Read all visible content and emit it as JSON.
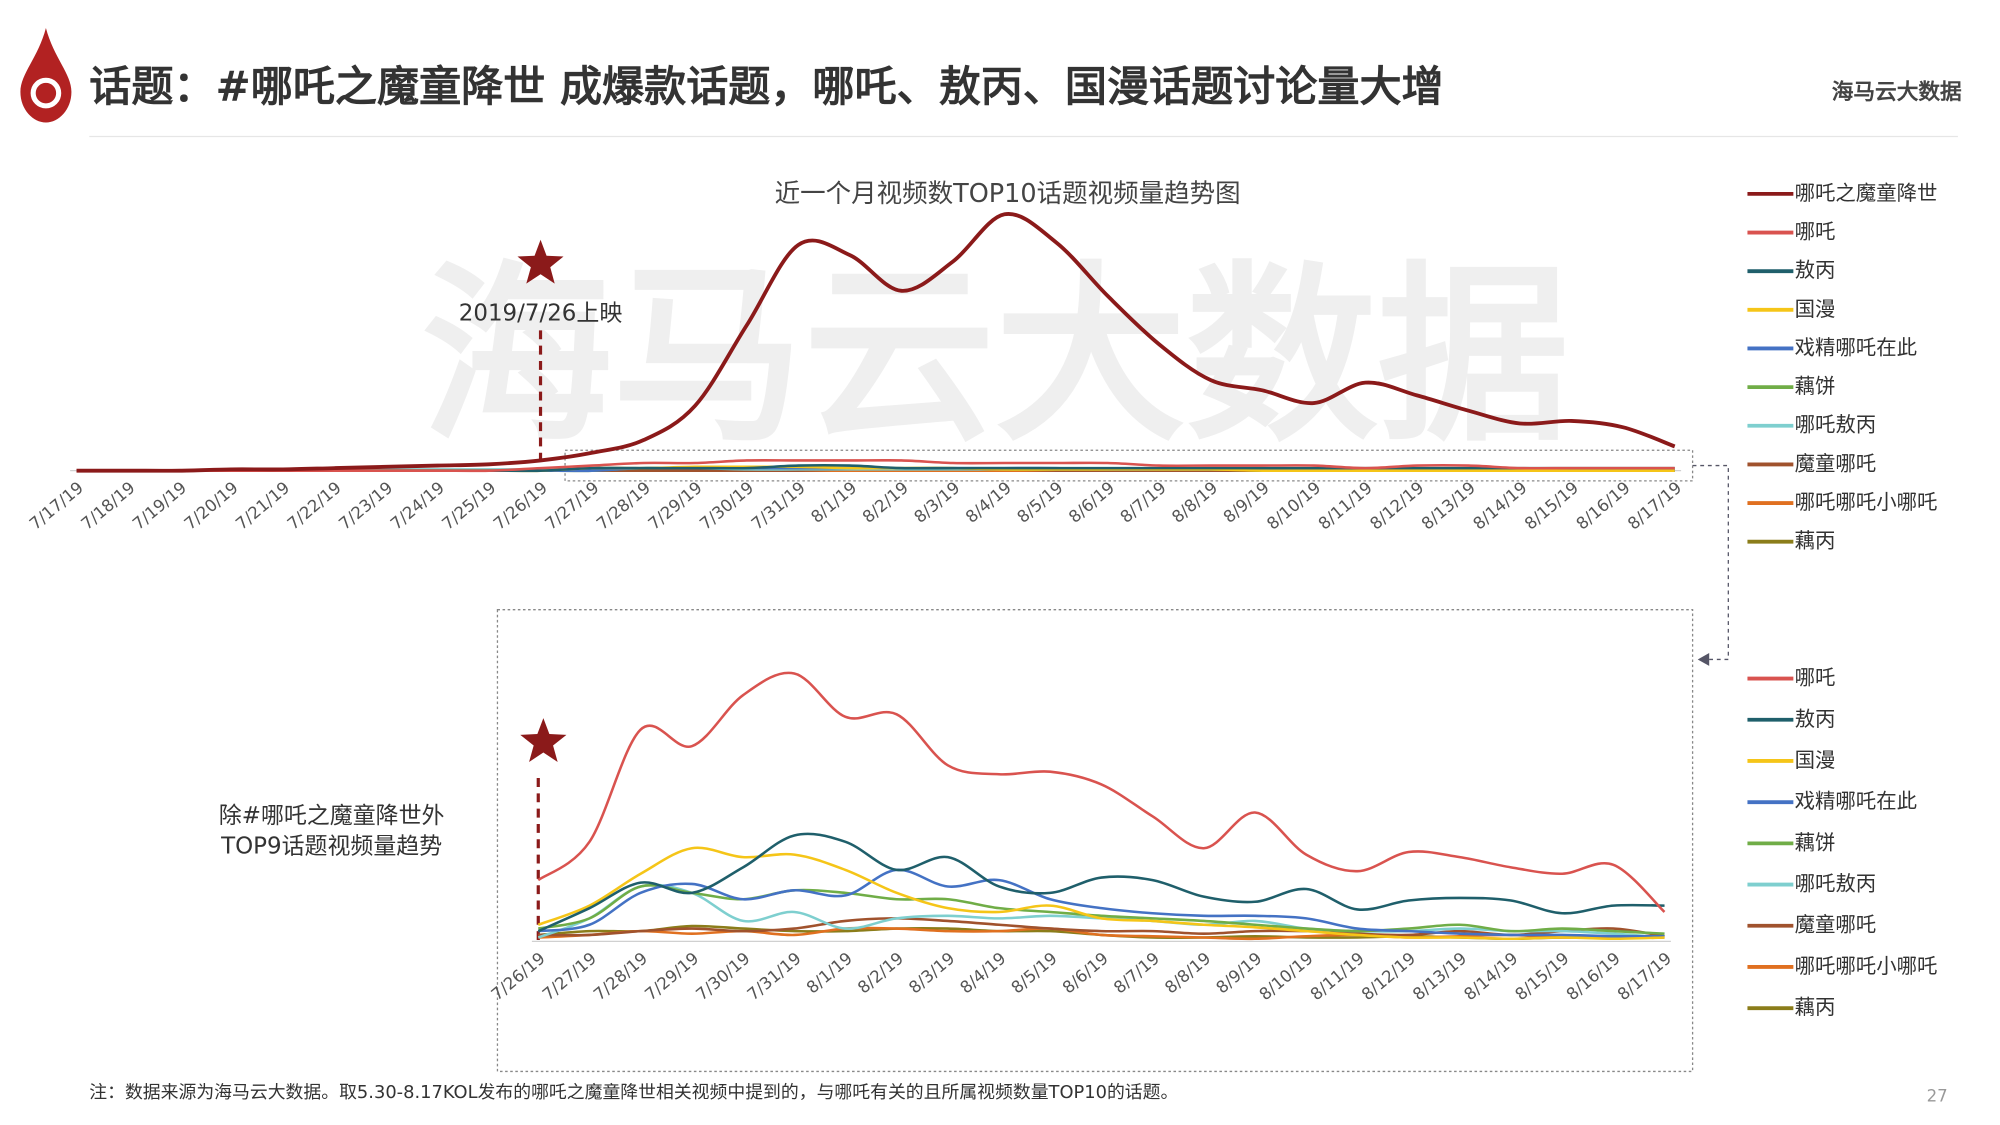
{
  "header": {
    "title": "话题：#哪吒之魔童降世 成爆款话题，哪吒、敖丙、国漫话题讨论量大增",
    "logo": "海马云大数据"
  },
  "watermark": "海马云大数据",
  "footnote": "注：数据来源为海马云大数据。取5.30-8.17KOL发布的哪吒之魔童降世相关视频中提到的，与哪吒有关的且所属视频数量TOP10的话题。",
  "page_number": "27",
  "chart_data": [
    {
      "type": "line",
      "title": "近一个月视频数TOP10话题视频量趋势图",
      "annotation": "2019/7/26上映",
      "categories": [
        "7/17/19",
        "7/18/19",
        "7/19/19",
        "7/20/19",
        "7/21/19",
        "7/22/19",
        "7/23/19",
        "7/24/19",
        "7/25/19",
        "7/26/19",
        "7/27/19",
        "7/28/19",
        "7/29/19",
        "7/30/19",
        "7/31/19",
        "8/1/19",
        "8/2/19",
        "8/3/19",
        "8/4/19",
        "8/5/19",
        "8/6/19",
        "8/7/19",
        "8/8/19",
        "8/9/19",
        "8/10/19",
        "8/11/19",
        "8/12/19",
        "8/13/19",
        "8/14/19",
        "8/15/19",
        "8/16/19",
        "8/17/19"
      ],
      "ylim": [
        0,
        105
      ],
      "series": [
        {
          "name": "哪吒之魔童降世",
          "color": "#8b1a1a",
          "values": [
            0,
            0,
            0,
            0.5,
            0.5,
            1,
            1.5,
            2,
            2.5,
            4,
            7,
            12,
            25.5,
            57,
            88.5,
            84.5,
            70.5,
            82,
            100.5,
            89.5,
            68.5,
            49.5,
            35.5,
            31.5,
            26.5,
            34.5,
            29.5,
            23.5,
            18.5,
            19.5,
            17,
            9.5
          ]
        },
        {
          "name": "哪吒",
          "color": "#d9534f",
          "values": [
            0,
            0,
            0,
            0,
            0,
            0,
            0,
            0,
            0,
            1,
            2,
            3,
            3,
            4,
            4,
            4,
            4,
            3,
            3,
            3,
            3,
            2,
            2,
            2,
            2,
            1,
            2,
            2,
            1,
            1,
            1,
            1
          ]
        },
        {
          "name": "敖丙",
          "color": "#1f5f6b",
          "values": [
            0,
            0,
            0,
            0,
            0,
            0,
            0,
            0,
            0,
            0,
            1,
            1,
            1,
            1,
            2,
            2,
            1,
            1,
            1,
            1,
            1,
            1,
            1,
            1,
            1,
            1,
            1,
            1,
            1,
            1,
            1,
            1
          ]
        },
        {
          "name": "国漫",
          "color": "#f5c518",
          "values": [
            0,
            0,
            0,
            0,
            0,
            0,
            0,
            0,
            0,
            0,
            1,
            1,
            1.5,
            1.5,
            1.5,
            1,
            1,
            1,
            0.5,
            0.5,
            0.5,
            0.5,
            0.5,
            0,
            0,
            0,
            0,
            0,
            0,
            0,
            0,
            0
          ]
        },
        {
          "name": "戏精哪吒在此",
          "color": "#4472c4",
          "values": [
            0,
            0,
            0,
            0,
            0,
            0,
            0,
            0,
            0,
            0,
            0,
            1,
            1,
            1,
            1,
            1,
            1,
            1,
            1,
            1,
            0.5,
            0.5,
            0.5,
            0.5,
            0.5,
            0,
            0,
            0,
            0,
            0,
            0,
            0
          ]
        },
        {
          "name": "藕饼",
          "color": "#70ad47",
          "values": [
            0,
            0,
            0,
            0,
            0,
            0,
            0,
            0,
            0,
            0,
            0,
            1,
            1,
            1,
            1,
            1,
            1,
            1,
            0.5,
            0.5,
            0.5,
            0.5,
            0.5,
            0,
            0,
            0,
            0,
            0,
            0,
            0,
            0,
            0
          ]
        },
        {
          "name": "哪吒敖丙",
          "color": "#7ecfcf",
          "values": [
            0,
            0,
            0,
            0,
            0,
            0.5,
            0.5,
            0.5,
            0.5,
            0.5,
            0.5,
            1,
            1,
            0.5,
            0.5,
            0.5,
            0.5,
            0.5,
            0.5,
            0.5,
            0.5,
            0.5,
            0.5,
            0.5,
            0,
            0,
            0,
            0,
            0,
            0,
            0,
            0
          ]
        },
        {
          "name": "魔童哪吒",
          "color": "#a0522d",
          "values": [
            0,
            0,
            0,
            0,
            0,
            0,
            0,
            0,
            0,
            0,
            0,
            0,
            0,
            0,
            0,
            0.5,
            0.5,
            0.5,
            0.5,
            0,
            0,
            0,
            0,
            0,
            0,
            0,
            0,
            0,
            0,
            0,
            0,
            0
          ]
        },
        {
          "name": "哪吒哪吒小哪吒",
          "color": "#e07020",
          "values": [
            0,
            0,
            0,
            0,
            0,
            0,
            0,
            0,
            0,
            0,
            0,
            0,
            0,
            0,
            0,
            0,
            0,
            0,
            0,
            0,
            0,
            0,
            0,
            0,
            0,
            0,
            0,
            0,
            0,
            0,
            0,
            0
          ]
        },
        {
          "name": "藕丙",
          "color": "#8b7d1a",
          "values": [
            0,
            0,
            0,
            0,
            0,
            0,
            0,
            0,
            0,
            0,
            0,
            0,
            0,
            0.5,
            0,
            0,
            0,
            0,
            0,
            0,
            0,
            0,
            0,
            0,
            0,
            0,
            0,
            0,
            0,
            0,
            0,
            0
          ]
        }
      ]
    },
    {
      "type": "line",
      "title": [
        "除#哪吒之魔童降世外",
        "TOP9话题视频量趋势"
      ],
      "categories": [
        "7/26/19",
        "7/27/19",
        "7/28/19",
        "7/29/19",
        "7/30/19",
        "7/31/19",
        "8/1/19",
        "8/2/19",
        "8/3/19",
        "8/4/19",
        "8/5/19",
        "8/6/19",
        "8/7/19",
        "8/8/19",
        "8/9/19",
        "8/10/19",
        "8/11/19",
        "8/12/19",
        "8/13/19",
        "8/14/19",
        "8/15/19",
        "8/16/19",
        "8/17/19"
      ],
      "ylim": [
        0,
        110
      ],
      "series": [
        {
          "name": "哪吒",
          "color": "#d9534f",
          "values": [
            24,
            39,
            83,
            76.5,
            96.5,
            105,
            88,
            89,
            69,
            65.5,
            66.5,
            61.5,
            49,
            36.5,
            50.5,
            34,
            27.5,
            35,
            33,
            29,
            26.5,
            30,
            11.5
          ]
        },
        {
          "name": "敖丙",
          "color": "#1f5f6b",
          "values": [
            4,
            13,
            23,
            19,
            29,
            41.5,
            39,
            28,
            33,
            21.5,
            19,
            25,
            24,
            17.5,
            15.5,
            20.5,
            12.5,
            16,
            17,
            16,
            11,
            14,
            14
          ]
        },
        {
          "name": "国漫",
          "color": "#f5c518",
          "values": [
            6.5,
            14,
            26.5,
            36.5,
            33,
            34,
            28,
            19,
            13,
            11.5,
            14,
            9,
            8,
            6.5,
            5.5,
            4,
            2.5,
            1.5,
            1.5,
            1,
            1.5,
            1,
            1.5
          ]
        },
        {
          "name": "戏精哪吒在此",
          "color": "#4472c4",
          "values": [
            4,
            6.5,
            19,
            22.5,
            16.5,
            20,
            18,
            28,
            21.5,
            24,
            16.5,
            13,
            11,
            10,
            10,
            9,
            5,
            4,
            3,
            2.5,
            2.5,
            2,
            2
          ]
        },
        {
          "name": "藕饼",
          "color": "#70ad47",
          "values": [
            5,
            9,
            21.5,
            19,
            16.5,
            20,
            19,
            16.5,
            16.5,
            13,
            11.5,
            10,
            9,
            8,
            6.5,
            5,
            4,
            5,
            6.5,
            4,
            5,
            4,
            3
          ]
        },
        {
          "name": "哪吒敖丙",
          "color": "#7ecfcf",
          "values": [
            1.5,
            9,
            21.5,
            19,
            8,
            11.5,
            5,
            9,
            10,
            9,
            10,
            9,
            8,
            6.5,
            8,
            5,
            4,
            4,
            5,
            4,
            4,
            3,
            1.5
          ]
        },
        {
          "name": "魔童哪吒",
          "color": "#a0522d",
          "values": [
            2.5,
            2.5,
            4,
            5,
            4,
            5,
            8,
            9,
            8,
            6.5,
            5,
            4,
            4,
            3,
            4,
            4,
            3,
            2.5,
            4,
            2.5,
            4,
            5,
            2
          ]
        },
        {
          "name": "哪吒哪吒小哪吒",
          "color": "#e07020",
          "values": [
            1.5,
            2.5,
            4,
            3,
            4,
            2.5,
            5,
            5,
            4,
            4,
            5,
            2.5,
            2,
            1.5,
            1,
            2,
            2.5,
            1.5,
            2,
            2.5,
            1.5,
            2,
            1.5
          ]
        },
        {
          "name": "藕丙",
          "color": "#8b7d1a",
          "values": [
            2.5,
            4,
            4,
            6,
            5,
            4,
            4,
            5,
            5,
            4,
            4,
            2.5,
            1.5,
            1.5,
            2,
            1.5,
            1.5,
            2,
            1.5,
            1,
            1.5,
            1.5,
            1.5
          ]
        }
      ]
    }
  ]
}
